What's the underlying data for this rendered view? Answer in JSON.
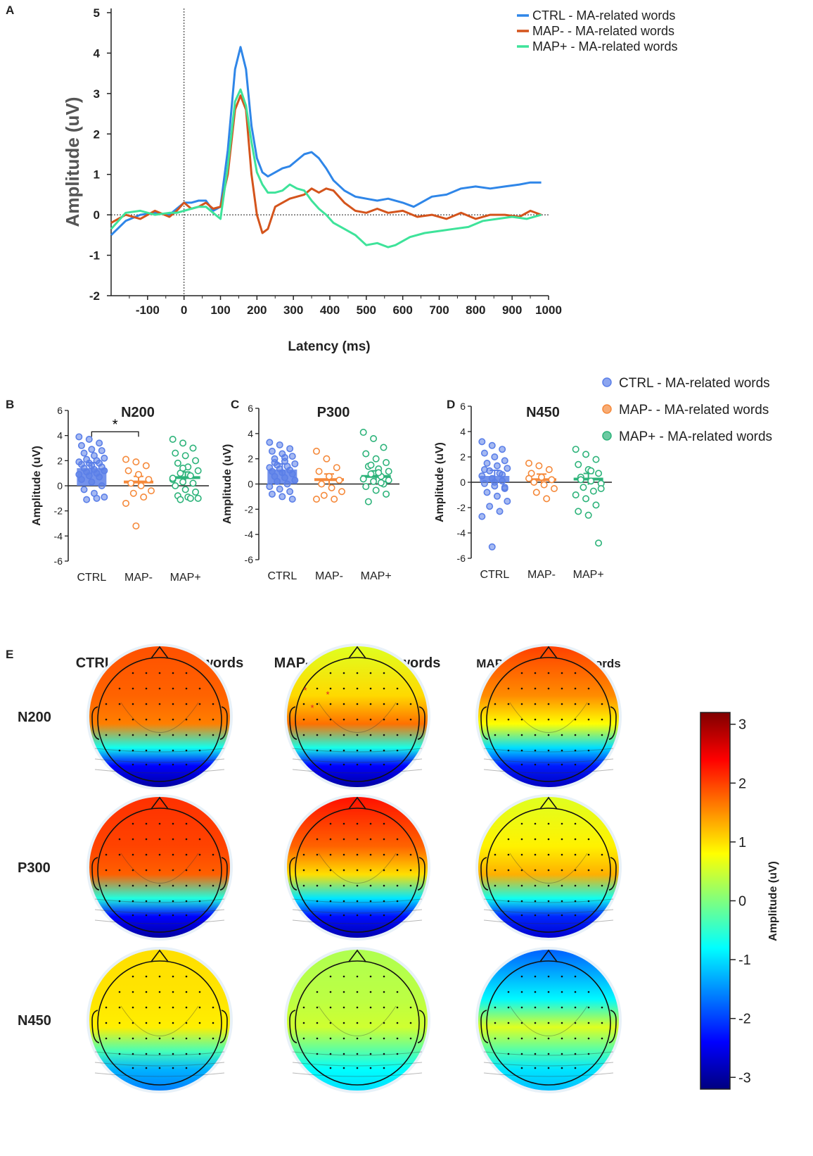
{
  "panels": {
    "a_letter": "A",
    "b_letter": "B",
    "c_letter": "C",
    "d_letter": "D",
    "e_letter": "E"
  },
  "chart_data": [
    {
      "id": "A",
      "type": "line",
      "title": "",
      "xlabel": "Latency (ms)",
      "ylabel": "Amplitude (uV)",
      "xlim": [
        -200,
        1000
      ],
      "ylim": [
        -2,
        5
      ],
      "xticks": [
        -100,
        0,
        100,
        200,
        300,
        400,
        500,
        600,
        700,
        800,
        900,
        1000
      ],
      "yticks": [
        -2,
        -1,
        0,
        1,
        2,
        3,
        4,
        5
      ],
      "series": [
        {
          "name": "CTRL - MA-related words",
          "color": "#2f86e8",
          "x": [
            -200,
            -160,
            -120,
            -80,
            -40,
            -20,
            0,
            20,
            40,
            60,
            80,
            100,
            120,
            140,
            155,
            170,
            185,
            200,
            215,
            230,
            250,
            270,
            290,
            310,
            330,
            350,
            370,
            390,
            410,
            440,
            470,
            500,
            530,
            560,
            600,
            630,
            650,
            680,
            720,
            760,
            800,
            840,
            880,
            920,
            950,
            980
          ],
          "y": [
            -0.5,
            -0.15,
            0,
            0.05,
            0,
            0.15,
            0.3,
            0.3,
            0.35,
            0.35,
            0.1,
            0.2,
            1.6,
            3.6,
            4.15,
            3.6,
            2.2,
            1.4,
            1.05,
            0.95,
            1.05,
            1.15,
            1.2,
            1.35,
            1.5,
            1.55,
            1.4,
            1.15,
            0.85,
            0.6,
            0.45,
            0.4,
            0.35,
            0.4,
            0.3,
            0.2,
            0.3,
            0.45,
            0.5,
            0.65,
            0.7,
            0.65,
            0.7,
            0.75,
            0.8,
            0.8
          ]
        },
        {
          "name": "MAP- - MA-related words",
          "color": "#d4541c",
          "x": [
            -200,
            -160,
            -120,
            -80,
            -40,
            -20,
            0,
            20,
            40,
            60,
            80,
            100,
            120,
            140,
            155,
            170,
            185,
            200,
            215,
            230,
            250,
            270,
            290,
            310,
            330,
            350,
            370,
            390,
            410,
            440,
            470,
            500,
            530,
            560,
            600,
            640,
            680,
            720,
            760,
            800,
            840,
            880,
            920,
            950,
            980
          ],
          "y": [
            -0.2,
            0,
            -0.1,
            0.1,
            -0.05,
            0.1,
            0.3,
            0.15,
            0.2,
            0.3,
            0.15,
            0.2,
            1.0,
            2.6,
            2.95,
            2.6,
            1.0,
            0.0,
            -0.45,
            -0.35,
            0.2,
            0.3,
            0.4,
            0.45,
            0.5,
            0.65,
            0.55,
            0.65,
            0.6,
            0.3,
            0.1,
            0.05,
            0.15,
            0.05,
            0.1,
            -0.05,
            0.0,
            -0.1,
            0.05,
            -0.1,
            0.0,
            0.0,
            -0.05,
            0.1,
            0.0
          ]
        },
        {
          "name": "MAP+ - MA-related words",
          "color": "#3ee39a",
          "x": [
            -200,
            -160,
            -120,
            -80,
            -40,
            -20,
            0,
            20,
            40,
            60,
            80,
            100,
            120,
            140,
            155,
            170,
            185,
            200,
            215,
            230,
            250,
            270,
            290,
            310,
            330,
            350,
            370,
            390,
            410,
            440,
            470,
            500,
            530,
            560,
            580,
            620,
            660,
            700,
            740,
            780,
            820,
            860,
            900,
            940,
            980
          ],
          "y": [
            -0.35,
            0.05,
            0.1,
            0.0,
            0.05,
            0.05,
            0.1,
            0.15,
            0.2,
            0.2,
            0.05,
            -0.1,
            1.2,
            2.8,
            3.1,
            2.7,
            1.8,
            1.05,
            0.75,
            0.55,
            0.55,
            0.6,
            0.75,
            0.65,
            0.6,
            0.35,
            0.15,
            0.0,
            -0.2,
            -0.35,
            -0.5,
            -0.75,
            -0.7,
            -0.8,
            -0.75,
            -0.55,
            -0.45,
            -0.4,
            -0.35,
            -0.3,
            -0.15,
            -0.1,
            -0.05,
            -0.1,
            0.0
          ]
        }
      ]
    },
    {
      "id": "B",
      "type": "scatter",
      "title": "N200",
      "ylabel": "Amplitude (uV)",
      "ylim": [
        -6,
        6
      ],
      "yticks": [
        -6,
        -4,
        -2,
        0,
        2,
        4,
        6
      ],
      "categories": [
        "CTRL",
        "MAP-",
        "MAP+"
      ],
      "means": [
        1.4,
        0.3,
        0.65
      ],
      "significance": {
        "between": [
          "CTRL",
          "MAP-"
        ],
        "label": "*"
      },
      "groups": [
        {
          "name": "CTRL",
          "color": "#5b7fe8",
          "values": [
            3.9,
            3.7,
            3.4,
            3.2,
            2.9,
            2.8,
            2.6,
            2.4,
            2.2,
            2.1,
            2.0,
            1.9,
            1.8,
            1.8,
            1.7,
            1.6,
            1.5,
            1.4,
            1.3,
            1.2,
            1.1,
            1.0,
            0.9,
            0.8,
            0.7,
            0.5,
            0.3,
            0.0,
            -0.3,
            -0.6,
            -0.9,
            -1.1,
            -1.0
          ]
        },
        {
          "name": "MAP-",
          "color": "#f5893a",
          "values": [
            2.1,
            1.9,
            1.6,
            1.2,
            0.9,
            0.5,
            0.2,
            0.0,
            -0.4,
            -0.6,
            -0.9,
            -1.4,
            -3.2
          ]
        },
        {
          "name": "MAP+",
          "color": "#2db37a",
          "values": [
            3.7,
            3.4,
            3.0,
            2.6,
            2.4,
            2.0,
            1.8,
            1.5,
            1.2,
            1.0,
            0.8,
            0.5,
            0.3,
            0.2,
            0.0,
            -0.3,
            -0.5,
            -0.8,
            -0.9,
            -1.0,
            -1.1,
            -1.0,
            0.6,
            1.4
          ]
        }
      ]
    },
    {
      "id": "C",
      "type": "scatter",
      "title": "P300",
      "ylabel": "Amplitude (uV)",
      "ylim": [
        -6,
        6
      ],
      "yticks": [
        -6,
        -4,
        -2,
        0,
        2,
        4,
        6
      ],
      "categories": [
        "CTRL",
        "MAP-",
        "MAP+"
      ],
      "means": [
        1.15,
        0.35,
        0.6
      ],
      "groups": [
        {
          "name": "CTRL",
          "color": "#5b7fe8",
          "values": [
            3.3,
            3.1,
            2.8,
            2.6,
            2.4,
            2.2,
            2.0,
            1.8,
            1.6,
            1.5,
            1.4,
            1.3,
            1.2,
            1.1,
            1.0,
            0.9,
            0.8,
            0.6,
            0.5,
            0.3,
            0.2,
            0.0,
            -0.2,
            -0.4,
            -0.6,
            -0.8,
            -1.0,
            -1.2,
            1.7,
            2.1
          ]
        },
        {
          "name": "MAP-",
          "color": "#f5893a",
          "values": [
            2.6,
            2.0,
            1.3,
            1.0,
            0.6,
            0.3,
            0.0,
            -0.3,
            -0.6,
            -0.9,
            -1.2,
            -1.2
          ]
        },
        {
          "name": "MAP+",
          "color": "#2db37a",
          "values": [
            4.1,
            3.6,
            2.9,
            2.4,
            2.0,
            1.7,
            1.4,
            1.2,
            1.0,
            0.8,
            0.6,
            0.4,
            0.2,
            0.0,
            -0.2,
            -0.5,
            -0.8,
            -1.4,
            0.9,
            0.3,
            1.5,
            0.1
          ]
        }
      ]
    },
    {
      "id": "D",
      "type": "scatter",
      "title": "N450",
      "ylabel": "Amplitude (uV)",
      "ylim": [
        -6,
        6
      ],
      "yticks": [
        -6,
        -4,
        -2,
        0,
        2,
        4,
        6
      ],
      "categories": [
        "CTRL",
        "MAP-",
        "MAP+"
      ],
      "means": [
        0.5,
        0.2,
        0.25
      ],
      "groups": [
        {
          "name": "CTRL",
          "color": "#5b7fe8",
          "values": [
            3.2,
            2.9,
            2.6,
            2.3,
            2.0,
            1.7,
            1.5,
            1.3,
            1.1,
            0.9,
            0.7,
            0.5,
            0.3,
            0.1,
            -0.1,
            -0.3,
            -0.5,
            -0.8,
            -1.1,
            -1.5,
            -1.9,
            -2.3,
            -2.7,
            -5.1,
            0.6,
            1.0,
            0.0,
            -0.4
          ]
        },
        {
          "name": "MAP-",
          "color": "#f5893a",
          "values": [
            1.5,
            1.3,
            1.0,
            0.7,
            0.4,
            0.2,
            0.0,
            -0.2,
            -0.5,
            -0.8,
            -1.3,
            0.3
          ]
        },
        {
          "name": "MAP+",
          "color": "#2db37a",
          "values": [
            2.6,
            2.2,
            1.8,
            1.4,
            1.0,
            0.7,
            0.4,
            0.1,
            -0.1,
            -0.4,
            -0.7,
            -1.0,
            -1.3,
            -1.8,
            -2.3,
            -2.6,
            -4.8,
            0.2,
            0.9,
            -0.5
          ]
        }
      ]
    }
  ],
  "legend_b": [
    {
      "label": "CTRL - MA-related words",
      "color": "#5b7fe8"
    },
    {
      "label": "MAP- - MA-related words",
      "color": "#f5893a"
    },
    {
      "label": "MAP+ - MA-related words",
      "color": "#2db37a"
    }
  ],
  "topomaps": {
    "col_titles": [
      "CTRL - MA-related words",
      "MAP- - MA-related words",
      "MAP+ - MA-related words"
    ],
    "row_labels": [
      "N200",
      "P300",
      "N450"
    ],
    "colorbar": {
      "title": "Amplitude (uV)",
      "ticks": [
        3,
        2,
        1,
        0,
        -1,
        -2,
        -3
      ],
      "range": [
        -3.2,
        3.2
      ]
    },
    "maps": [
      {
        "row": "N200",
        "col": "CTRL",
        "front": 1.9,
        "center": 1.6,
        "back": -3.0
      },
      {
        "row": "N200",
        "col": "MAP-",
        "front": 0.6,
        "center": 1.7,
        "back": -3.0
      },
      {
        "row": "N200",
        "col": "MAP+",
        "front": 2.0,
        "center": 0.8,
        "back": -2.8
      },
      {
        "row": "P300",
        "col": "CTRL",
        "front": 2.1,
        "center": 1.8,
        "back": -3.0
      },
      {
        "row": "P300",
        "col": "MAP-",
        "front": 2.3,
        "center": 1.0,
        "back": -2.9
      },
      {
        "row": "P300",
        "col": "MAP+",
        "front": 0.6,
        "center": 1.3,
        "back": -2.7
      },
      {
        "row": "N450",
        "col": "CTRL",
        "front": 1.0,
        "center": 0.9,
        "back": -1.6
      },
      {
        "row": "N450",
        "col": "MAP-",
        "front": 0.3,
        "center": 0.5,
        "back": -1.0
      },
      {
        "row": "N450",
        "col": "MAP+",
        "front": -1.8,
        "center": 0.6,
        "back": -1.2
      }
    ]
  }
}
